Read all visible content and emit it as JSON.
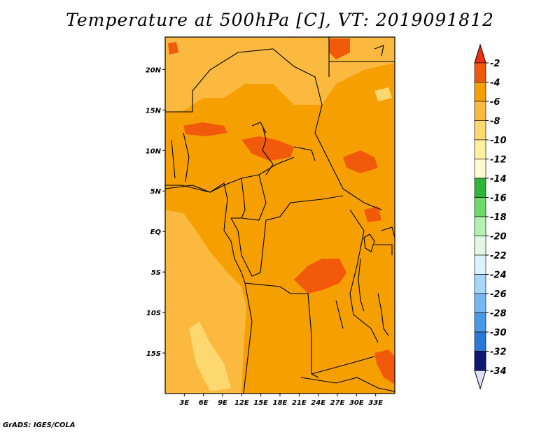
{
  "title": "Temperature at 500hPa [C], VT: 2019091812",
  "credit": "GrADS: IGES/COLA",
  "map": {
    "lon_range": [
      0,
      36
    ],
    "lat_range": [
      -20,
      24
    ],
    "lat_ticks": [
      {
        "value": 20,
        "label": "20N"
      },
      {
        "value": 15,
        "label": "15N"
      },
      {
        "value": 10,
        "label": "10N"
      },
      {
        "value": 5,
        "label": "5N"
      },
      {
        "value": 0,
        "label": "EQ"
      },
      {
        "value": -5,
        "label": "5S"
      },
      {
        "value": -10,
        "label": "10S"
      },
      {
        "value": -15,
        "label": "15S"
      }
    ],
    "lon_ticks": [
      {
        "value": 3,
        "label": "3E"
      },
      {
        "value": 6,
        "label": "6E"
      },
      {
        "value": 9,
        "label": "9E"
      },
      {
        "value": 12,
        "label": "12E"
      },
      {
        "value": 15,
        "label": "15E"
      },
      {
        "value": 18,
        "label": "18E"
      },
      {
        "value": 21,
        "label": "21E"
      },
      {
        "value": 24,
        "label": "24E"
      },
      {
        "value": 27,
        "label": "27E"
      },
      {
        "value": 30,
        "label": "30E"
      },
      {
        "value": 33,
        "label": "33E"
      }
    ]
  },
  "colorbar": {
    "levels": [
      {
        "label": "-2",
        "color": "#f05a0a"
      },
      {
        "label": "-4",
        "color": "#f5a000"
      },
      {
        "label": "-6",
        "color": "#fbb940"
      },
      {
        "label": "-8",
        "color": "#fcd86e"
      },
      {
        "label": "-10",
        "color": "#fef0a0"
      },
      {
        "label": "-12",
        "color": "#fffbd0"
      },
      {
        "label": "-14",
        "color": "#2eb53c"
      },
      {
        "label": "-16",
        "color": "#6ed86a"
      },
      {
        "label": "-18",
        "color": "#b4f0b0"
      },
      {
        "label": "-20",
        "color": "#e2f8e4"
      },
      {
        "label": "-22",
        "color": "#dcf2ff"
      },
      {
        "label": "-24",
        "color": "#a6d6f8"
      },
      {
        "label": "-26",
        "color": "#78b8f0"
      },
      {
        "label": "-28",
        "color": "#4a98e8"
      },
      {
        "label": "-30",
        "color": "#2a78d8"
      },
      {
        "label": "-32",
        "color": "#1a58c0"
      },
      {
        "label": "-34",
        "color": "#1538a8"
      }
    ],
    "top_color": "#f03010",
    "bottom_color": "#dde0f8",
    "last_band_color": "#0c1a70"
  }
}
